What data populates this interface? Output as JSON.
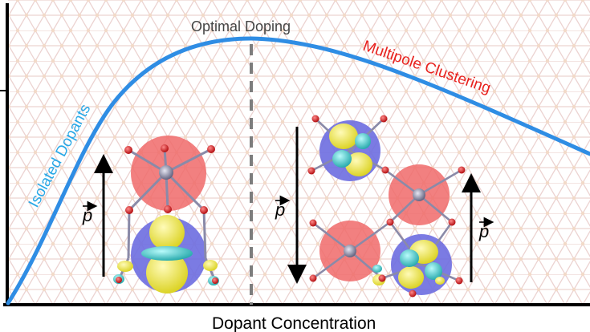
{
  "labels": {
    "optimal": "Optimal Doping",
    "isolated": "Isolated Dopants",
    "multipole": "Multipole Clustering",
    "xaxis": "Dopant Concentration",
    "p_symbol": "p"
  },
  "colors": {
    "curve": "#2f8de4",
    "isolated_text": "#2aa8e6",
    "multipole_text": "#e8211d",
    "axis": "#000000",
    "dashed": "#7a7a7a",
    "lattice": "#ecd0cf",
    "red_sphere": "#f06a6a",
    "blue_sphere": "#6d6de0",
    "yellow_lobe": "#f4ee3a",
    "cyan_lobe": "#3fd3d3",
    "metal_atom": "#8a8aa8",
    "oxygen_atom": "#d3181b"
  }
}
